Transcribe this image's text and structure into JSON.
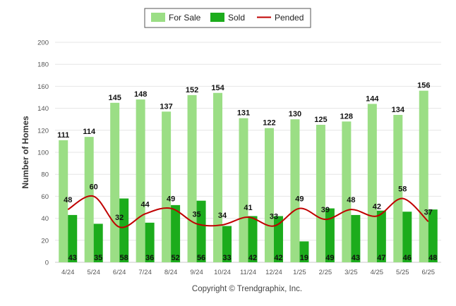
{
  "chart_data": {
    "type": "bar",
    "categories": [
      "4/24",
      "5/24",
      "6/24",
      "7/24",
      "8/24",
      "9/24",
      "10/24",
      "11/24",
      "12/24",
      "1/25",
      "2/25",
      "3/25",
      "4/25",
      "5/25",
      "6/25"
    ],
    "series": [
      {
        "name": "For Sale",
        "kind": "bar",
        "color": "#9bde85",
        "values": [
          111,
          114,
          145,
          148,
          137,
          152,
          154,
          131,
          122,
          130,
          125,
          128,
          144,
          134,
          156
        ]
      },
      {
        "name": "Sold",
        "kind": "bar",
        "color": "#1cac1c",
        "values": [
          43,
          35,
          58,
          36,
          52,
          56,
          33,
          42,
          42,
          19,
          49,
          43,
          47,
          46,
          48
        ]
      },
      {
        "name": "Pended",
        "kind": "line",
        "color": "#c00000",
        "values": [
          48,
          60,
          32,
          44,
          49,
          35,
          34,
          41,
          33,
          49,
          39,
          48,
          42,
          58,
          37
        ]
      }
    ],
    "ylabel": "Number of Homes",
    "ylim": [
      0,
      200
    ],
    "yticks": [
      0,
      20,
      40,
      60,
      80,
      100,
      120,
      140,
      160,
      180,
      200
    ],
    "grid": true,
    "legend_position": "top-center",
    "copyright": "Copyright © Trendgraphix, Inc."
  }
}
